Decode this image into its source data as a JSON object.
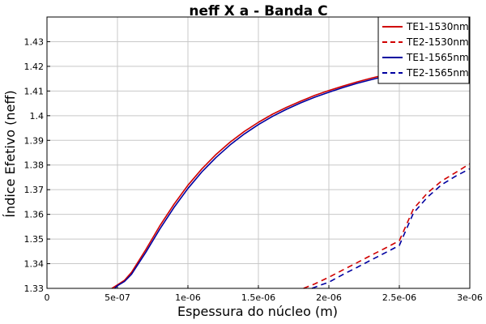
{
  "chart_data": {
    "type": "line",
    "title": "neff X a - Banda C",
    "xlabel": "Espessura do núcleo (m)",
    "ylabel": "Índice Efetivo (neff)",
    "xlim": [
      0,
      3e-06
    ],
    "ylim": [
      1.33,
      1.44
    ],
    "grid": true,
    "legend_position": "top-right",
    "x_ticks": [
      {
        "value": 0,
        "label": "0"
      },
      {
        "value": 5e-07,
        "label": "5e-07"
      },
      {
        "value": 1e-06,
        "label": "1e-06"
      },
      {
        "value": 1.5e-06,
        "label": "1.5e-06"
      },
      {
        "value": 2e-06,
        "label": "2e-06"
      },
      {
        "value": 2.5e-06,
        "label": "2.5e-06"
      },
      {
        "value": 3e-06,
        "label": "3e-06"
      }
    ],
    "y_ticks": [
      {
        "value": 1.33,
        "label": "1.33"
      },
      {
        "value": 1.34,
        "label": "1.34"
      },
      {
        "value": 1.35,
        "label": "1.35"
      },
      {
        "value": 1.36,
        "label": "1.36"
      },
      {
        "value": 1.37,
        "label": "1.37"
      },
      {
        "value": 1.38,
        "label": "1.38"
      },
      {
        "value": 1.39,
        "label": "1.39"
      },
      {
        "value": 1.4,
        "label": "1.4"
      },
      {
        "value": 1.41,
        "label": "1.41"
      },
      {
        "value": 1.42,
        "label": "1.42"
      },
      {
        "value": 1.43,
        "label": "1.43"
      }
    ],
    "series": [
      {
        "name": "TE1-1530nm",
        "color": "#d00000",
        "dash": "solid",
        "x": [
          4.6e-07,
          5e-07,
          5.5e-07,
          6e-07,
          7e-07,
          8e-07,
          9e-07,
          1e-06,
          1.1e-06,
          1.2e-06,
          1.3e-06,
          1.4e-06,
          1.5e-06,
          1.6e-06,
          1.7e-06,
          1.8e-06,
          1.9e-06,
          2e-06,
          2.1e-06,
          2.2e-06,
          2.3e-06,
          2.4e-06,
          2.45e-06
        ],
        "y": [
          1.33,
          1.3314,
          1.3333,
          1.3365,
          1.3456,
          1.3553,
          1.364,
          1.3718,
          1.3785,
          1.3843,
          1.3893,
          1.3936,
          1.3973,
          1.4006,
          1.4034,
          1.4059,
          1.4082,
          1.4102,
          1.412,
          1.4137,
          1.4152,
          1.4166,
          1.4172
        ]
      },
      {
        "name": "TE2-1530nm",
        "color": "#d00000",
        "dash": "dashed",
        "x": [
          1.82e-06,
          1.9e-06,
          2e-06,
          2.1e-06,
          2.2e-06,
          2.3e-06,
          2.4e-06,
          2.5e-06,
          2.6e-06,
          2.7e-06,
          2.8e-06,
          2.9e-06,
          3e-06
        ],
        "y": [
          1.33,
          1.3318,
          1.3345,
          1.3375,
          1.3404,
          1.3434,
          1.3463,
          1.3493,
          1.3622,
          1.3687,
          1.3735,
          1.377,
          1.3805
        ]
      },
      {
        "name": "TE1-1565nm",
        "color": "#0000a0",
        "dash": "solid",
        "x": [
          4.8e-07,
          5e-07,
          5.5e-07,
          6e-07,
          7e-07,
          8e-07,
          9e-07,
          1e-06,
          1.1e-06,
          1.2e-06,
          1.3e-06,
          1.4e-06,
          1.5e-06,
          1.6e-06,
          1.7e-06,
          1.8e-06,
          1.9e-06,
          2e-06,
          2.1e-06,
          2.2e-06,
          2.3e-06,
          2.4e-06,
          2.45e-06
        ],
        "y": [
          1.33,
          1.3311,
          1.3328,
          1.3357,
          1.3445,
          1.354,
          1.3627,
          1.3705,
          1.3773,
          1.3831,
          1.3882,
          1.3926,
          1.3964,
          1.3997,
          1.4026,
          1.4052,
          1.4075,
          1.4095,
          1.4114,
          1.4131,
          1.4146,
          1.416,
          1.4166
        ]
      },
      {
        "name": "TE2-1565nm",
        "color": "#0000a0",
        "dash": "dashed",
        "x": [
          1.88e-06,
          1.95e-06,
          2e-06,
          2.1e-06,
          2.2e-06,
          2.3e-06,
          2.4e-06,
          2.5e-06,
          2.6e-06,
          2.7e-06,
          2.8e-06,
          2.9e-06,
          3e-06
        ],
        "y": [
          1.33,
          1.3315,
          1.3325,
          1.3356,
          1.3385,
          1.3415,
          1.3444,
          1.3474,
          1.3605,
          1.367,
          1.372,
          1.3755,
          1.3785
        ]
      }
    ]
  }
}
